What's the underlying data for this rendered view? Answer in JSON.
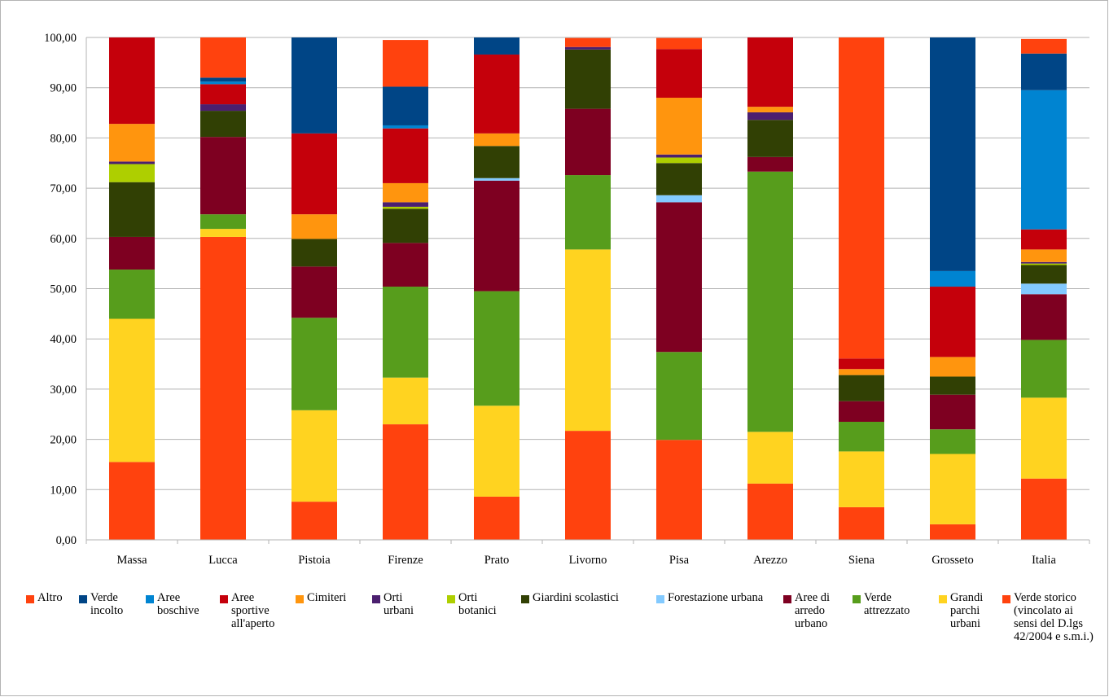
{
  "chart_data": {
    "type": "bar",
    "stacked": true,
    "title": "",
    "xlabel": "",
    "ylabel": "",
    "ylim": [
      0,
      100
    ],
    "yticks": [
      "0,00",
      "10,00",
      "20,00",
      "30,00",
      "40,00",
      "50,00",
      "60,00",
      "70,00",
      "80,00",
      "90,00",
      "100,00"
    ],
    "grid": true,
    "legend_position": "bottom",
    "categories": [
      "Massa",
      "Lucca",
      "Pistoia",
      "Firenze",
      "Prato",
      "Livorno",
      "Pisa",
      "Arezzo",
      "Siena",
      "Grosseto",
      "Italia"
    ],
    "series": [
      {
        "name": "Verde storico (vincolato ai sensi del D.lgs 42/2004 e s.m.i.)",
        "color": "#ff420e",
        "values": [
          15.5,
          60.3,
          7.6,
          23.0,
          8.6,
          21.7,
          19.9,
          11.2,
          6.5,
          3.1,
          12.2
        ]
      },
      {
        "name": "Grandi parchi urbani",
        "color": "#ffd320",
        "values": [
          28.5,
          1.6,
          18.2,
          9.3,
          18.1,
          36.1,
          0.0,
          10.3,
          11.1,
          14.0,
          16.1
        ]
      },
      {
        "name": "Verde attrezzato",
        "color": "#579d1c",
        "values": [
          9.8,
          2.9,
          18.4,
          18.1,
          22.8,
          14.8,
          17.5,
          51.8,
          5.9,
          4.9,
          11.5
        ]
      },
      {
        "name": "Aree di arredo urbano",
        "color": "#7e0021",
        "values": [
          6.5,
          15.4,
          10.2,
          8.7,
          22.0,
          13.2,
          29.8,
          2.9,
          4.1,
          6.9,
          9.1
        ]
      },
      {
        "name": "Forestazione urbana",
        "color": "#83caff",
        "values": [
          0.0,
          0.0,
          0.0,
          0.0,
          0.5,
          0.0,
          1.4,
          0.0,
          0.0,
          0.0,
          2.1
        ]
      },
      {
        "name": "Giardini scolastici",
        "color": "#314004",
        "values": [
          10.9,
          5.2,
          5.5,
          6.8,
          6.4,
          11.8,
          6.4,
          7.4,
          5.2,
          3.6,
          3.7
        ]
      },
      {
        "name": "Orti botanici",
        "color": "#aecf00",
        "values": [
          3.6,
          0.0,
          0.0,
          0.4,
          0.0,
          0.0,
          1.1,
          0.0,
          0.0,
          0.0,
          0.3
        ]
      },
      {
        "name": "Orti urbani",
        "color": "#4b1f6f",
        "values": [
          0.5,
          1.3,
          0.0,
          0.9,
          0.0,
          0.5,
          0.6,
          1.5,
          0.0,
          0.0,
          0.3
        ]
      },
      {
        "name": "Cimiteri",
        "color": "#ff950e",
        "values": [
          7.5,
          0.0,
          4.9,
          3.8,
          2.5,
          0.0,
          11.3,
          1.1,
          1.2,
          3.9,
          2.5
        ]
      },
      {
        "name": "Aree sportive all'aperto",
        "color": "#c5000b",
        "values": [
          17.2,
          4.0,
          16.1,
          10.9,
          15.7,
          0.0,
          9.7,
          13.9,
          2.1,
          14.0,
          4.0
        ]
      },
      {
        "name": "Aree boschive",
        "color": "#0084d1",
        "values": [
          0.0,
          0.5,
          0.0,
          0.6,
          0.0,
          0.0,
          0.0,
          0.0,
          0.0,
          3.1,
          27.7
        ]
      },
      {
        "name": "Verde incolto",
        "color": "#004586",
        "values": [
          0.0,
          0.8,
          19.1,
          7.7,
          3.4,
          0.0,
          0.0,
          0.0,
          0.0,
          46.5,
          7.3
        ]
      },
      {
        "name": "Altro",
        "color": "#ff420e",
        "values": [
          0.0,
          8.0,
          0.0,
          9.3,
          0.0,
          1.8,
          2.2,
          0.0,
          63.9,
          0.0,
          2.9
        ]
      }
    ]
  },
  "legend": [
    {
      "label": "Altro",
      "color": "#ff420e"
    },
    {
      "label": "Verde incolto",
      "color": "#004586"
    },
    {
      "label": "Aree boschive",
      "color": "#0084d1"
    },
    {
      "label": "Aree sportive all'aperto",
      "color": "#c5000b"
    },
    {
      "label": "Cimiteri",
      "color": "#ff950e"
    },
    {
      "label": "Orti urbani",
      "color": "#4b1f6f"
    },
    {
      "label": "Orti botanici",
      "color": "#aecf00"
    },
    {
      "label": "Giardini scolastici",
      "color": "#314004"
    },
    {
      "label": "Forestazione urbana",
      "color": "#83caff"
    },
    {
      "label": "Aree di arredo urbano",
      "color": "#7e0021"
    },
    {
      "label": "Verde attrezzato",
      "color": "#579d1c"
    },
    {
      "label": "Grandi parchi urbani",
      "color": "#ffd320"
    },
    {
      "label": "Verde storico (vincolato ai sensi del D.lgs 42/2004 e s.m.i.)",
      "color": "#ff420e"
    }
  ]
}
